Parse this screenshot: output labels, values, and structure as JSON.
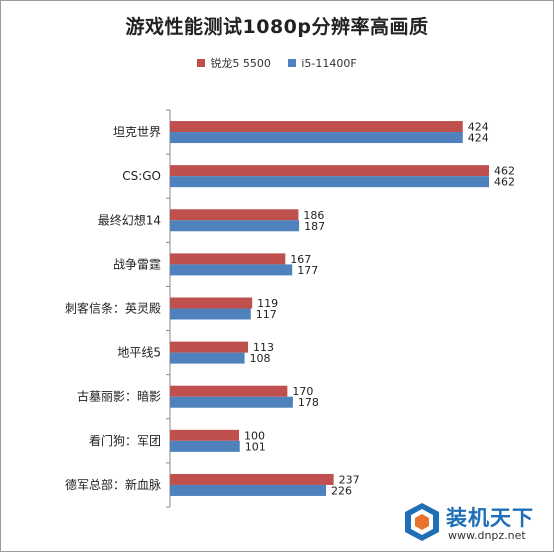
{
  "chart_data": {
    "type": "bar",
    "orientation": "horizontal",
    "title": "游戏性能测试1080p分辨率高画质",
    "categories": [
      "坦克世界",
      "CS:GO",
      "最终幻想14",
      "战争雷霆",
      "刺客信条：英灵殿",
      "地平线5",
      "古墓丽影：暗影",
      "看门狗：军团",
      "德军总部：新血脉"
    ],
    "series": [
      {
        "name": "锐龙5 5500",
        "color": "#c0504d",
        "values": [
          424,
          462,
          186,
          167,
          119,
          113,
          170,
          100,
          237
        ]
      },
      {
        "name": "i5-11400F",
        "color": "#4f81bd",
        "values": [
          424,
          462,
          187,
          177,
          117,
          108,
          178,
          101,
          226
        ]
      }
    ],
    "xlim": [
      0,
      480
    ],
    "legend_position": "top",
    "grid": false
  },
  "watermark": {
    "brand": "装机天下",
    "url": "www.dnpz.net"
  }
}
